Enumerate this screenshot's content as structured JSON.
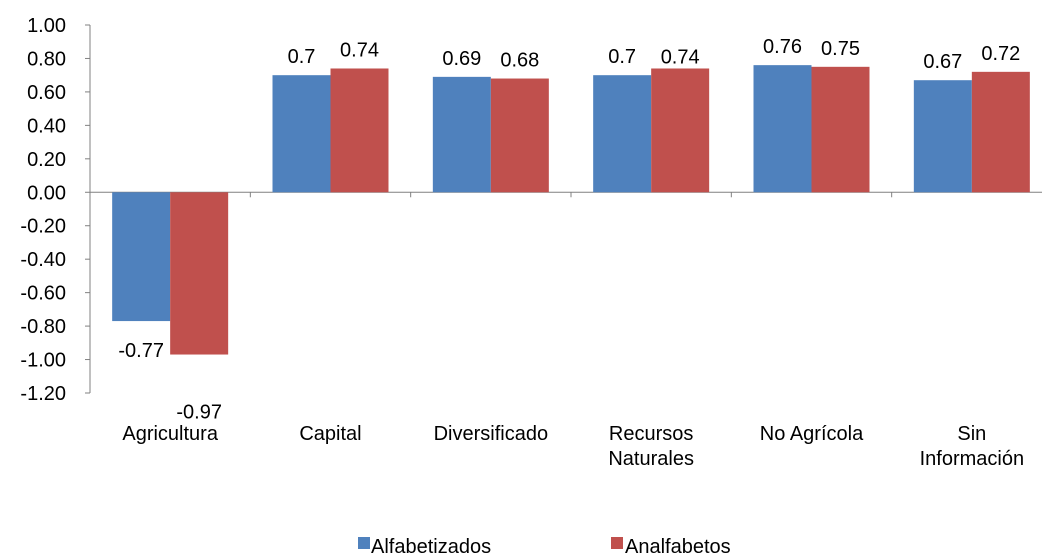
{
  "chart_data": {
    "type": "bar",
    "categories": [
      [
        "Agricultura"
      ],
      [
        "Capital"
      ],
      [
        "Diversificado"
      ],
      [
        "Recursos",
        "Naturales"
      ],
      [
        "No Agrícola"
      ],
      [
        "Sin",
        "Información"
      ]
    ],
    "series": [
      {
        "name": "Alfabetizados",
        "color": "#4F81BD",
        "values": [
          -0.77,
          0.7,
          0.69,
          0.7,
          0.76,
          0.67
        ],
        "labels": [
          "-0.77",
          "0.7",
          "0.69",
          "0.7",
          "0.76",
          "0.67"
        ]
      },
      {
        "name": "Analfabetos",
        "color": "#C0504D",
        "values": [
          -0.97,
          0.74,
          0.68,
          0.74,
          0.75,
          0.72
        ],
        "labels": [
          "-0.97",
          "0.74",
          "0.68",
          "0.74",
          "0.75",
          "0.72"
        ]
      }
    ],
    "yticks": [
      "1.00",
      "0.80",
      "0.60",
      "0.40",
      "0.20",
      "0.00",
      "-0.20",
      "-0.40",
      "-0.60",
      "-0.80",
      "-1.00",
      "-1.20"
    ],
    "ylim": [
      -1.2,
      1.0
    ],
    "title": "",
    "xlabel": "",
    "ylabel": "",
    "grid": false,
    "legend": "bottom"
  }
}
